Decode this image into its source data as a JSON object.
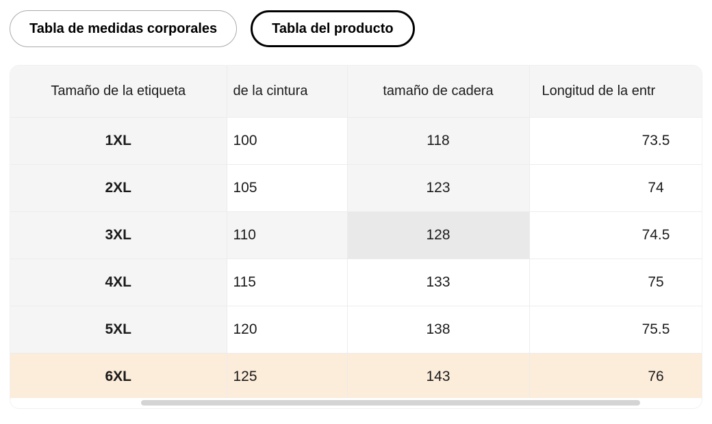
{
  "tabs": [
    {
      "label": "Tabla de medidas corporales",
      "selected": false
    },
    {
      "label": "Tabla del producto",
      "selected": true
    }
  ],
  "table": {
    "columns": [
      {
        "label": "Tamaño de la etiqueta"
      },
      {
        "label": "de la cintura"
      },
      {
        "label": "tamaño de cadera"
      },
      {
        "label": "Longitud de la entr"
      }
    ],
    "rows": [
      {
        "cells": [
          {
            "text": "1XL",
            "bg": "gray"
          },
          {
            "text": "100",
            "bg": "white"
          },
          {
            "text": "118",
            "bg": "gray"
          },
          {
            "text": "73.5",
            "bg": "white"
          }
        ]
      },
      {
        "cells": [
          {
            "text": "2XL",
            "bg": "gray"
          },
          {
            "text": "105",
            "bg": "white"
          },
          {
            "text": "123",
            "bg": "gray"
          },
          {
            "text": "74",
            "bg": "white"
          }
        ]
      },
      {
        "cells": [
          {
            "text": "3XL",
            "bg": "gray"
          },
          {
            "text": "110",
            "bg": "gray"
          },
          {
            "text": "128",
            "bg": "dark"
          },
          {
            "text": "74.5",
            "bg": "white"
          }
        ]
      },
      {
        "cells": [
          {
            "text": "4XL",
            "bg": "gray"
          },
          {
            "text": "115",
            "bg": "white"
          },
          {
            "text": "133",
            "bg": "white"
          },
          {
            "text": "75",
            "bg": "white"
          }
        ]
      },
      {
        "cells": [
          {
            "text": "5XL",
            "bg": "gray"
          },
          {
            "text": "120",
            "bg": "white"
          },
          {
            "text": "138",
            "bg": "white"
          },
          {
            "text": "75.5",
            "bg": "white"
          }
        ]
      },
      {
        "cells": [
          {
            "text": "6XL",
            "bg": "peach"
          },
          {
            "text": "125",
            "bg": "peach"
          },
          {
            "text": "143",
            "bg": "peach"
          },
          {
            "text": "76",
            "bg": "peach"
          }
        ]
      }
    ]
  },
  "colors": {
    "white": "#ffffff",
    "gray": "#f5f5f6",
    "dark": "#e9e9ea",
    "peach": "#fcecda",
    "header_bg": "#f5f5f6",
    "selected_tab_border": "#000000",
    "unselected_tab_border": "#aaaaaa",
    "scrollbar_thumb": "#d4d4d4"
  }
}
